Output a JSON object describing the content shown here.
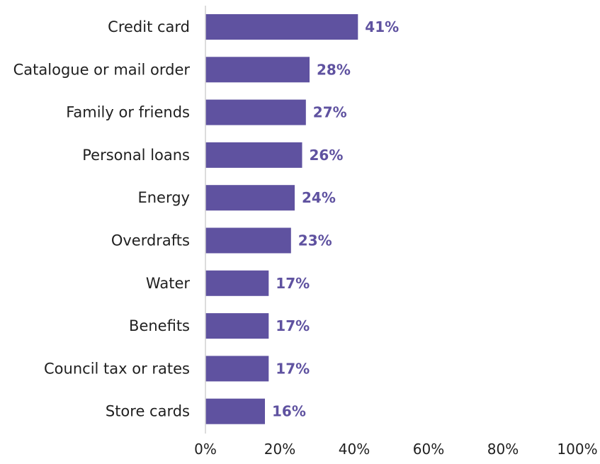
{
  "chart_data": {
    "type": "bar",
    "orientation": "horizontal",
    "categories": [
      "Credit card",
      "Catalogue or mail order",
      "Family or friends",
      "Personal loans",
      "Energy",
      "Overdrafts",
      "Water",
      "Benefits",
      "Council tax or rates",
      "Store cards"
    ],
    "values": [
      41,
      28,
      27,
      26,
      24,
      23,
      17,
      17,
      17,
      16
    ],
    "value_labels": [
      "41%",
      "28%",
      "27%",
      "26%",
      "24%",
      "23%",
      "17%",
      "17%",
      "17%",
      "16%"
    ],
    "xlim": [
      0,
      100
    ],
    "x_ticks": [
      0,
      20,
      40,
      60,
      80,
      100
    ],
    "x_tick_labels": [
      "0%",
      "20%",
      "40%",
      "60%",
      "80%",
      "100%"
    ],
    "title": "",
    "xlabel": "",
    "ylabel": "",
    "grid": false,
    "legend": "none",
    "colors": {
      "bar": "#5f52a0",
      "value_label": "#5f52a0",
      "axis": "#d0d0d0",
      "text": "#1f1f1f"
    }
  }
}
